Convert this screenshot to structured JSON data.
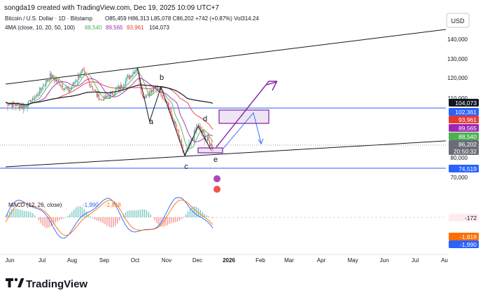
{
  "header": {
    "created_line": "songda19 created with TradingView.com, Dec 19, 2025 10:09 UTC+7",
    "symbol": "Bitcoin / U.S. Dollar · 1D · Bitstamp",
    "ohlc": "O85,459  H86,313  L85,078  C86,202  +742 (+0.87%)  Vol314.24",
    "ma_label": "4MA (close, 10, 20, 50, 100)",
    "ma_values": [
      "88,540",
      "89,565",
      "93,961",
      "104,073"
    ],
    "currency_button": "USD"
  },
  "macd_label": {
    "title": "MACD (12, 26, close)",
    "v1": "-1,990",
    "v2": "-1,818"
  },
  "footer": {
    "logo_text": "TradingView"
  },
  "colors": {
    "candle_up": "#26a69a",
    "candle_down": "#ef5350",
    "ma10": "#4caf50",
    "ma20": "#9c27b0",
    "ma50": "#e53935",
    "ma100": "#131722",
    "level_line": "#2962ff",
    "pattern": "#7b1fa2",
    "macd_line": "#2962ff",
    "signal_line": "#ff6d00"
  },
  "chart_data": {
    "type": "line",
    "title": "Bitcoin / U.S. Dollar · 1D · Bitstamp",
    "y_ticks": [
      "140,000",
      "130,000",
      "120,000",
      "110,000",
      "80,000",
      "70,000"
    ],
    "x_ticks": [
      "Jun",
      "Jul",
      "Aug",
      "Sep",
      "Oct",
      "Nov",
      "Dec",
      "2026",
      "Feb",
      "Mar",
      "Apr",
      "May",
      "Jun",
      "Jul",
      "Au"
    ],
    "price_badges": [
      {
        "label": "104,073",
        "value": 104073,
        "color": "#131722"
      },
      {
        "label": "102,361",
        "value": 102361,
        "color": "#2962ff"
      },
      {
        "label": "93,961",
        "value": 93961,
        "color": "#e53935"
      },
      {
        "label": "89,565",
        "value": 89565,
        "color": "#9c27b0"
      },
      {
        "label": "88,540",
        "value": 88540,
        "color": "#4caf50"
      },
      {
        "label": "86,202",
        "value": 86202,
        "color": "#6a6d78"
      },
      {
        "label": "20:50:32",
        "value": 83600,
        "color": "#6a6d78"
      },
      {
        "label": "74,519",
        "value": 74519,
        "color": "#2962ff"
      }
    ],
    "horizontal_levels": [
      102361,
      74519
    ],
    "wave_labels": [
      "a",
      "b",
      "c",
      "d",
      "e"
    ],
    "price_series": [
      {
        "date": "2025-06-01",
        "value": 104500
      },
      {
        "date": "2025-06-20",
        "value": 103000
      },
      {
        "date": "2025-07-14",
        "value": 121000
      },
      {
        "date": "2025-08-01",
        "value": 113500
      },
      {
        "date": "2025-08-14",
        "value": 123500
      },
      {
        "date": "2025-09-01",
        "value": 108000
      },
      {
        "date": "2025-09-20",
        "value": 115500
      },
      {
        "date": "2025-10-06",
        "value": 125500
      },
      {
        "date": "2025-10-11",
        "value": 110500
      },
      {
        "date": "2025-10-27",
        "value": 115500
      },
      {
        "date": "2025-11-21",
        "value": 81000
      },
      {
        "date": "2025-12-03",
        "value": 93500
      },
      {
        "date": "2025-12-18",
        "value": 85100
      }
    ],
    "macd": {
      "name": "MACD (12, 26, close)",
      "macd_value": -1990,
      "signal_value": -1818,
      "histogram_value": -172
    }
  }
}
